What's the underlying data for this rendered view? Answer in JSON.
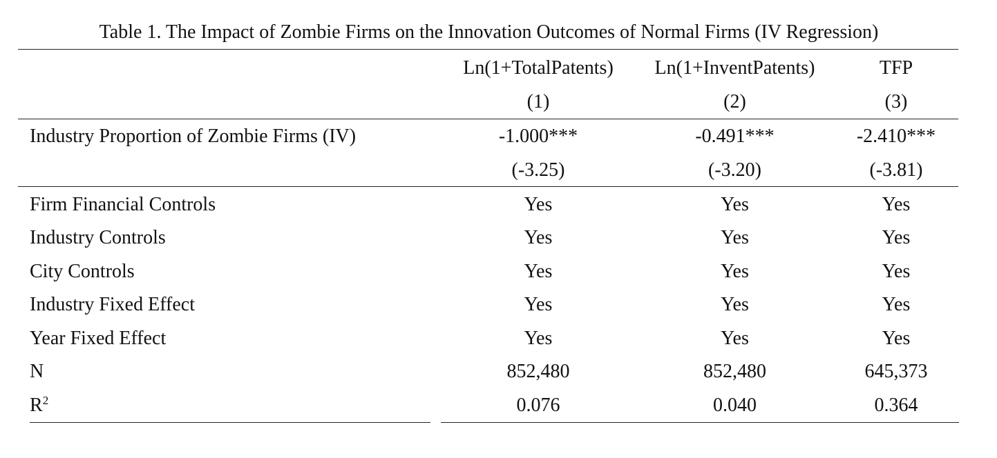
{
  "table": {
    "caption": "Table 1. The Impact of Zombie Firms on the Innovation Outcomes of Normal Firms (IV Regression)",
    "columns": [
      {
        "header": "Ln(1+TotalPatents)",
        "number": "(1)"
      },
      {
        "header": "Ln(1+InventPatents)",
        "number": "(2)"
      },
      {
        "header": "TFP",
        "number": "(3)"
      }
    ],
    "iv_row": {
      "label": "Industry Proportion of Zombie Firms (IV)",
      "coefficients": [
        "-1.000***",
        "-0.491***",
        "-2.410***"
      ],
      "t_stats": [
        "(-3.25)",
        "(-3.20)",
        "(-3.81)"
      ]
    },
    "control_rows": [
      {
        "label": "Firm Financial Controls",
        "values": [
          "Yes",
          "Yes",
          "Yes"
        ]
      },
      {
        "label": "Industry Controls",
        "values": [
          "Yes",
          "Yes",
          "Yes"
        ]
      },
      {
        "label": "City Controls",
        "values": [
          "Yes",
          "Yes",
          "Yes"
        ]
      },
      {
        "label": "Industry Fixed Effect",
        "values": [
          "Yes",
          "Yes",
          "Yes"
        ]
      },
      {
        "label": "Year Fixed Effect",
        "values": [
          "Yes",
          "Yes",
          "Yes"
        ]
      },
      {
        "label": "N",
        "values": [
          "852,480",
          "852,480",
          "645,373"
        ]
      }
    ],
    "r2_row": {
      "label_base": "R",
      "label_sup": "2",
      "values": [
        "0.076",
        "0.040",
        "0.364"
      ]
    }
  }
}
